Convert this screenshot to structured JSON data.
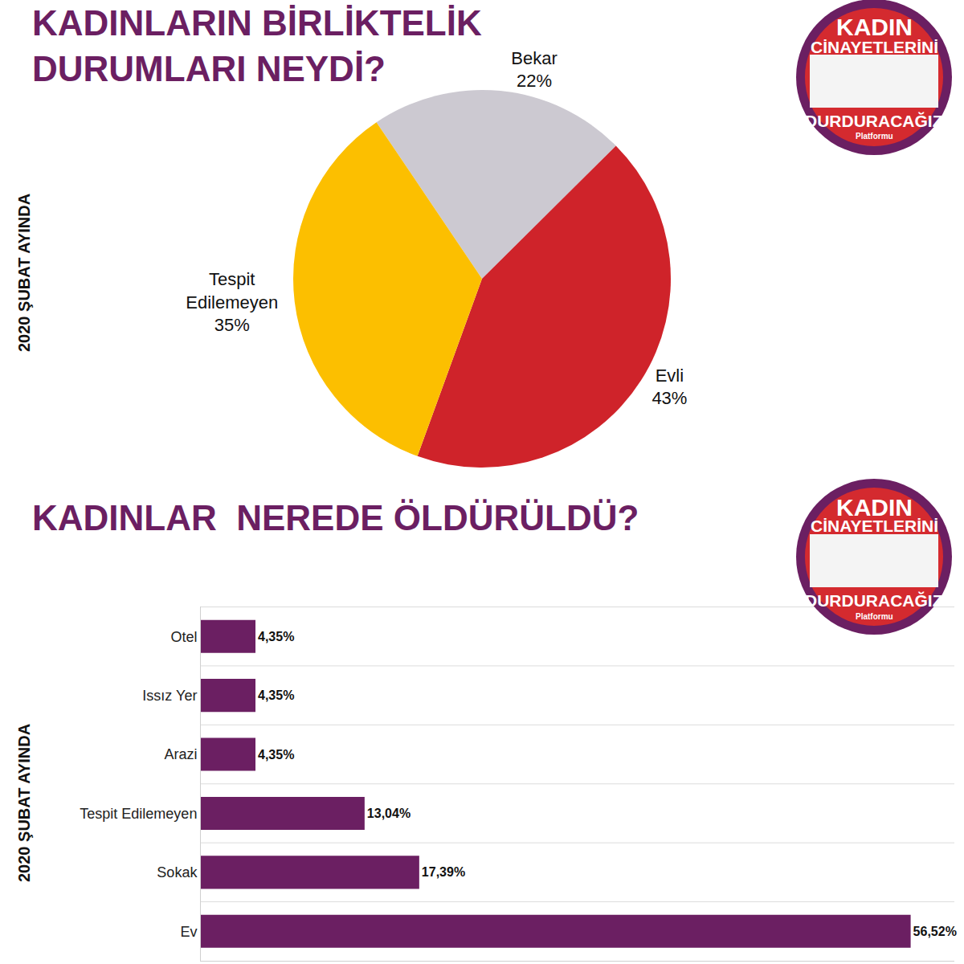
{
  "chart_data": [
    {
      "type": "pie",
      "title": "KADINLARIN BİRLİKTELİK\nDURUMLARI NEYDİ?",
      "subtitle": "2020 ŞUBAT AYINDA",
      "categories": [
        "Bekar",
        "Evli",
        "Tespit Edilemeyen"
      ],
      "values": [
        22,
        43,
        35
      ],
      "value_labels": [
        "22%",
        "43%",
        "35%"
      ],
      "colors": [
        "#ccc9d1",
        "#cf232a",
        "#fcbf00"
      ],
      "data_labels": true,
      "annotations": [
        "KADIN",
        "CİNAYETLERİNİ",
        "DURDURACAĞIZ",
        "Platformu"
      ]
    },
    {
      "type": "bar",
      "orientation": "horizontal",
      "title": "KADINLAR  NEREDE ÖLDÜRÜLDÜ?",
      "subtitle": "2020 ŞUBAT AYINDA",
      "categories": [
        "Otel",
        "Issız Yer",
        "Arazi",
        "Tespit Edilemeyen",
        "Sokak",
        "Ev"
      ],
      "values": [
        4.35,
        4.35,
        4.35,
        13.04,
        17.39,
        56.52
      ],
      "value_labels": [
        "4,35%",
        "4,35%",
        "4,35%",
        "13,04%",
        "17,39%",
        "56,52%"
      ],
      "color": "#6b1f62",
      "xlim": [
        0,
        60
      ],
      "data_labels": true,
      "tick_labels": "y",
      "grid": true,
      "annotations": [
        "KADIN",
        "CİNAYETLERİNİ",
        "DURDURACAĞIZ",
        "Platformu"
      ]
    }
  ]
}
